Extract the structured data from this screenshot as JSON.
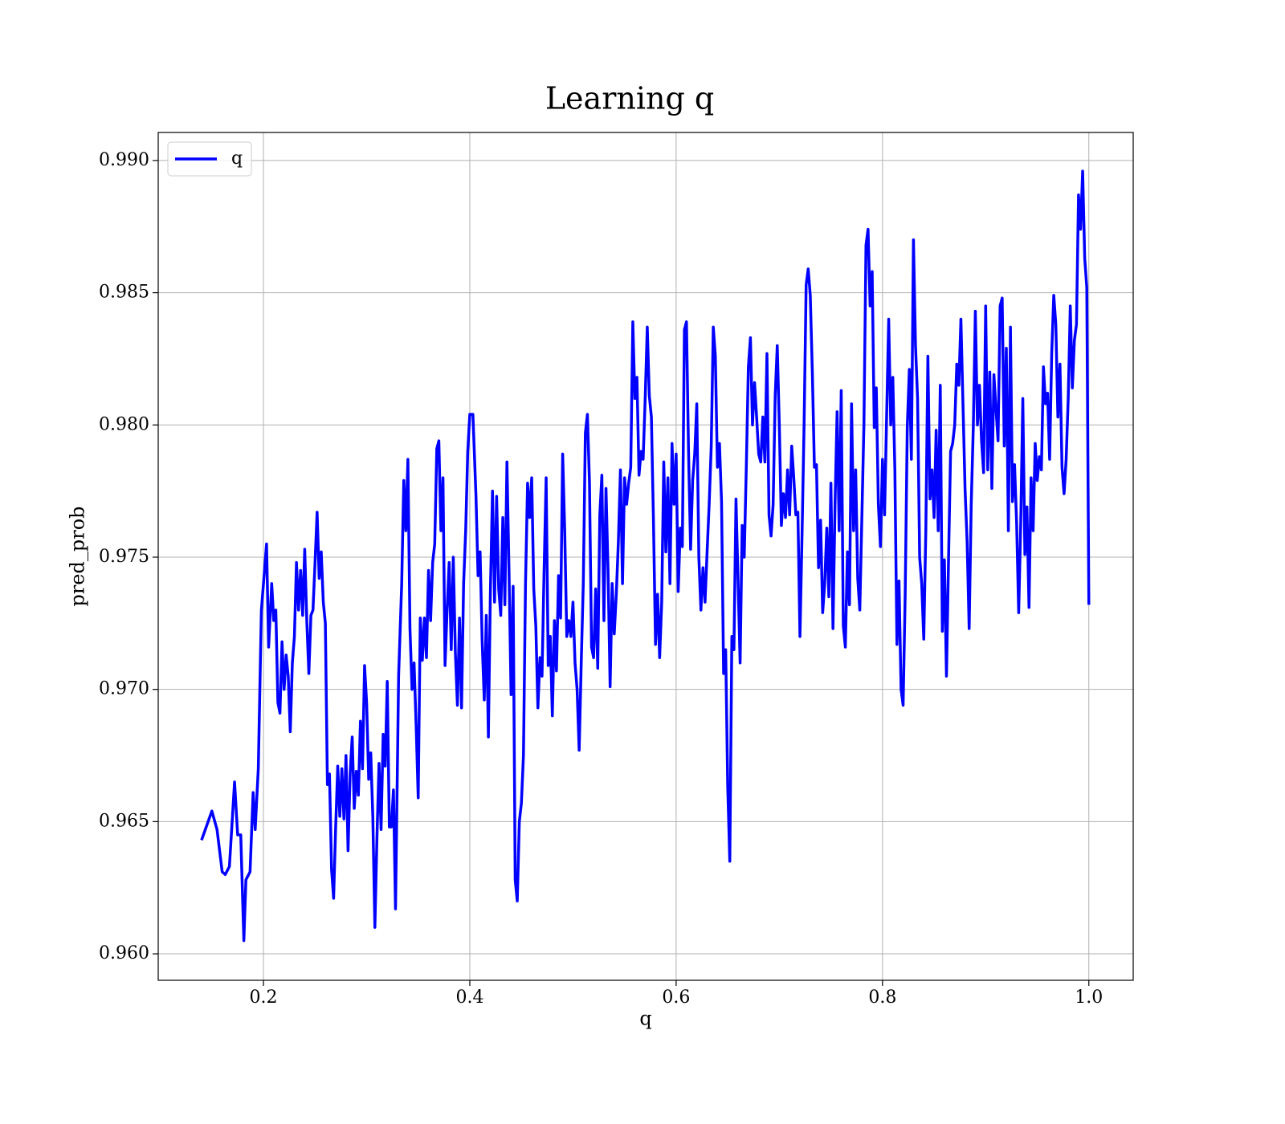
{
  "chart_data": {
    "type": "line",
    "title": "Learning q",
    "x_label": "q",
    "y_label": "pred_prob",
    "xlim": [
      0.098,
      1.043
    ],
    "ylim": [
      0.959,
      0.99106
    ],
    "xticks": [
      0.2,
      0.4,
      0.6,
      0.8,
      {
        "value": 1,
        "label": "1.0"
      }
    ],
    "yticks": [
      {
        "value": 0.96,
        "label": "0.960"
      },
      0.965,
      {
        "value": 0.97,
        "label": "0.970"
      },
      0.975,
      {
        "value": 0.98,
        "label": "0.980"
      },
      0.985,
      {
        "value": 0.99,
        "label": "0.990"
      }
    ],
    "grid": true,
    "legend": "upper left",
    "x": [
      0.14,
      0.15,
      0.155,
      0.16,
      0.163,
      0.167,
      0.172,
      0.175,
      0.178,
      0.181,
      0.183,
      0.187,
      0.19,
      0.192,
      0.195,
      0.198,
      0.203,
      0.205,
      0.208,
      0.21,
      0.212,
      0.214,
      0.216,
      0.218,
      0.22,
      0.222,
      0.224,
      0.226,
      0.228,
      0.23,
      0.232,
      0.234,
      0.236,
      0.238,
      0.24,
      0.242,
      0.244,
      0.246,
      0.248,
      0.25,
      0.252,
      0.254,
      0.256,
      0.258,
      0.26,
      0.262,
      0.264,
      0.266,
      0.268,
      0.27,
      0.272,
      0.274,
      0.276,
      0.278,
      0.28,
      0.282,
      0.284,
      0.286,
      0.288,
      0.29,
      0.292,
      0.294,
      0.296,
      0.298,
      0.3,
      0.302,
      0.304,
      0.306,
      0.308,
      0.31,
      0.312,
      0.314,
      0.316,
      0.318,
      0.32,
      0.322,
      0.324,
      0.326,
      0.328,
      0.331,
      0.334,
      0.336,
      0.338,
      0.34,
      0.342,
      0.344,
      0.346,
      0.348,
      0.35,
      0.352,
      0.354,
      0.356,
      0.358,
      0.36,
      0.362,
      0.364,
      0.366,
      0.368,
      0.37,
      0.372,
      0.374,
      0.376,
      0.378,
      0.38,
      0.382,
      0.384,
      0.386,
      0.388,
      0.39,
      0.392,
      0.394,
      0.396,
      0.398,
      0.4,
      0.403,
      0.406,
      0.408,
      0.41,
      0.412,
      0.414,
      0.416,
      0.418,
      0.42,
      0.422,
      0.424,
      0.426,
      0.428,
      0.43,
      0.432,
      0.434,
      0.436,
      0.438,
      0.44,
      0.442,
      0.444,
      0.446,
      0.448,
      0.45,
      0.452,
      0.454,
      0.456,
      0.458,
      0.46,
      0.462,
      0.464,
      0.466,
      0.468,
      0.47,
      0.472,
      0.474,
      0.476,
      0.478,
      0.48,
      0.482,
      0.484,
      0.486,
      0.488,
      0.49,
      0.492,
      0.494,
      0.496,
      0.498,
      0.5,
      0.502,
      0.504,
      0.506,
      0.508,
      0.51,
      0.512,
      0.514,
      0.516,
      0.518,
      0.52,
      0.522,
      0.524,
      0.526,
      0.528,
      0.53,
      0.532,
      0.534,
      0.536,
      0.538,
      0.54,
      0.542,
      0.544,
      0.546,
      0.548,
      0.55,
      0.552,
      0.554,
      0.556,
      0.558,
      0.56,
      0.562,
      0.564,
      0.566,
      0.568,
      0.57,
      0.572,
      0.574,
      0.576,
      0.578,
      0.58,
      0.582,
      0.584,
      0.586,
      0.588,
      0.59,
      0.592,
      0.594,
      0.596,
      0.598,
      0.6,
      0.602,
      0.604,
      0.606,
      0.608,
      0.61,
      0.612,
      0.614,
      0.616,
      0.618,
      0.62,
      0.622,
      0.624,
      0.626,
      0.628,
      0.63,
      0.632,
      0.634,
      0.636,
      0.638,
      0.64,
      0.642,
      0.644,
      0.646,
      0.648,
      0.65,
      0.652,
      0.654,
      0.656,
      0.658,
      0.66,
      0.662,
      0.664,
      0.666,
      0.668,
      0.67,
      0.672,
      0.674,
      0.676,
      0.678,
      0.68,
      0.682,
      0.684,
      0.686,
      0.688,
      0.69,
      0.692,
      0.694,
      0.696,
      0.698,
      0.7,
      0.702,
      0.704,
      0.706,
      0.708,
      0.71,
      0.712,
      0.714,
      0.716,
      0.718,
      0.72,
      0.722,
      0.724,
      0.726,
      0.728,
      0.73,
      0.732,
      0.734,
      0.736,
      0.738,
      0.74,
      0.742,
      0.744,
      0.746,
      0.748,
      0.75,
      0.752,
      0.754,
      0.756,
      0.758,
      0.76,
      0.762,
      0.764,
      0.766,
      0.768,
      0.77,
      0.772,
      0.774,
      0.776,
      0.778,
      0.78,
      0.782,
      0.784,
      0.786,
      0.788,
      0.79,
      0.792,
      0.794,
      0.796,
      0.798,
      0.8,
      0.802,
      0.804,
      0.806,
      0.808,
      0.81,
      0.812,
      0.814,
      0.816,
      0.818,
      0.82,
      0.822,
      0.824,
      0.826,
      0.828,
      0.83,
      0.832,
      0.834,
      0.836,
      0.838,
      0.84,
      0.842,
      0.844,
      0.846,
      0.848,
      0.85,
      0.852,
      0.854,
      0.856,
      0.858,
      0.86,
      0.862,
      0.864,
      0.866,
      0.868,
      0.87,
      0.872,
      0.874,
      0.876,
      0.878,
      0.88,
      0.882,
      0.884,
      0.886,
      0.888,
      0.89,
      0.892,
      0.894,
      0.896,
      0.898,
      0.9,
      0.902,
      0.904,
      0.906,
      0.908,
      0.91,
      0.912,
      0.914,
      0.916,
      0.918,
      0.92,
      0.922,
      0.924,
      0.926,
      0.928,
      0.93,
      0.932,
      0.934,
      0.936,
      0.938,
      0.94,
      0.942,
      0.944,
      0.946,
      0.948,
      0.95,
      0.952,
      0.954,
      0.956,
      0.958,
      0.96,
      0.962,
      0.964,
      0.966,
      0.968,
      0.97,
      0.972,
      0.974,
      0.976,
      0.978,
      0.98,
      0.982,
      0.984,
      0.986,
      0.988,
      0.99,
      0.992,
      0.994,
      0.996,
      0.998,
      1.0
    ],
    "series": [
      {
        "name": "q",
        "color": "#0000ff",
        "values": [
          0.9643,
          0.9654,
          0.9647,
          0.9631,
          0.963,
          0.9633,
          0.9665,
          0.9645,
          0.9645,
          0.9605,
          0.9628,
          0.9631,
          0.9661,
          0.9647,
          0.967,
          0.973,
          0.9755,
          0.9716,
          0.974,
          0.9726,
          0.973,
          0.9695,
          0.9691,
          0.9718,
          0.97,
          0.9713,
          0.9705,
          0.9684,
          0.971,
          0.972,
          0.9748,
          0.973,
          0.9745,
          0.9728,
          0.9753,
          0.9726,
          0.9706,
          0.9728,
          0.973,
          0.9748,
          0.9767,
          0.9742,
          0.9752,
          0.9733,
          0.9725,
          0.9664,
          0.9668,
          0.9632,
          0.9621,
          0.9648,
          0.9671,
          0.9652,
          0.967,
          0.9651,
          0.9675,
          0.9639,
          0.9668,
          0.9682,
          0.9655,
          0.9669,
          0.966,
          0.9688,
          0.967,
          0.9709,
          0.9695,
          0.9666,
          0.9676,
          0.9652,
          0.961,
          0.9644,
          0.9672,
          0.9647,
          0.9683,
          0.9671,
          0.9703,
          0.9648,
          0.9648,
          0.9662,
          0.9617,
          0.9705,
          0.974,
          0.9779,
          0.976,
          0.9787,
          0.9723,
          0.97,
          0.971,
          0.9686,
          0.9659,
          0.9727,
          0.9711,
          0.9727,
          0.9712,
          0.9745,
          0.9726,
          0.9748,
          0.9755,
          0.9791,
          0.9794,
          0.976,
          0.978,
          0.9709,
          0.973,
          0.9748,
          0.9715,
          0.975,
          0.9714,
          0.9694,
          0.9727,
          0.9693,
          0.974,
          0.976,
          0.979,
          0.9804,
          0.9804,
          0.9773,
          0.9743,
          0.9752,
          0.9718,
          0.9696,
          0.9728,
          0.9682,
          0.9738,
          0.9775,
          0.9733,
          0.9773,
          0.9738,
          0.9728,
          0.9765,
          0.9732,
          0.9786,
          0.9745,
          0.9698,
          0.9739,
          0.9628,
          0.962,
          0.965,
          0.9657,
          0.9675,
          0.974,
          0.9778,
          0.9765,
          0.978,
          0.9738,
          0.9724,
          0.9693,
          0.9712,
          0.9705,
          0.9745,
          0.978,
          0.9709,
          0.972,
          0.969,
          0.9726,
          0.9707,
          0.9743,
          0.9727,
          0.9789,
          0.976,
          0.972,
          0.9726,
          0.972,
          0.9733,
          0.971,
          0.97,
          0.9677,
          0.971,
          0.974,
          0.9797,
          0.9804,
          0.9778,
          0.9716,
          0.9712,
          0.9738,
          0.9708,
          0.9766,
          0.9781,
          0.9726,
          0.9776,
          0.9745,
          0.9701,
          0.974,
          0.9721,
          0.9736,
          0.9756,
          0.9783,
          0.974,
          0.978,
          0.977,
          0.9778,
          0.9784,
          0.9839,
          0.981,
          0.9818,
          0.9781,
          0.979,
          0.9787,
          0.981,
          0.9837,
          0.9811,
          0.9803,
          0.9764,
          0.9717,
          0.9736,
          0.9712,
          0.9733,
          0.9786,
          0.9752,
          0.978,
          0.974,
          0.9793,
          0.977,
          0.9789,
          0.9737,
          0.9761,
          0.9754,
          0.9836,
          0.9839,
          0.979,
          0.9753,
          0.9779,
          0.9789,
          0.9808,
          0.975,
          0.973,
          0.9746,
          0.9733,
          0.9752,
          0.977,
          0.9792,
          0.9837,
          0.9826,
          0.9784,
          0.9793,
          0.9771,
          0.9706,
          0.9715,
          0.9663,
          0.9635,
          0.972,
          0.9715,
          0.9772,
          0.9741,
          0.971,
          0.9762,
          0.975,
          0.9784,
          0.9822,
          0.9833,
          0.98,
          0.9816,
          0.9803,
          0.9789,
          0.9786,
          0.9803,
          0.9786,
          0.9827,
          0.9766,
          0.9758,
          0.977,
          0.9811,
          0.983,
          0.98,
          0.9762,
          0.9774,
          0.9765,
          0.9783,
          0.9766,
          0.9792,
          0.978,
          0.9766,
          0.9767,
          0.972,
          0.9758,
          0.98,
          0.9853,
          0.9859,
          0.9849,
          0.982,
          0.9784,
          0.9785,
          0.9746,
          0.9764,
          0.9729,
          0.974,
          0.9761,
          0.9735,
          0.9778,
          0.9723,
          0.977,
          0.9805,
          0.976,
          0.9813,
          0.9724,
          0.9716,
          0.9752,
          0.9732,
          0.9808,
          0.976,
          0.9783,
          0.9742,
          0.973,
          0.9765,
          0.98,
          0.9868,
          0.9874,
          0.9845,
          0.9858,
          0.9799,
          0.9814,
          0.977,
          0.9754,
          0.9787,
          0.9766,
          0.9803,
          0.984,
          0.98,
          0.9818,
          0.9783,
          0.9717,
          0.9741,
          0.97,
          0.9694,
          0.9736,
          0.9799,
          0.9821,
          0.9787,
          0.987,
          0.983,
          0.981,
          0.975,
          0.974,
          0.9719,
          0.976,
          0.9826,
          0.9772,
          0.9783,
          0.9765,
          0.9798,
          0.976,
          0.9815,
          0.9722,
          0.9749,
          0.9705,
          0.9749,
          0.979,
          0.9793,
          0.98,
          0.9823,
          0.9815,
          0.984,
          0.9808,
          0.9776,
          0.9756,
          0.9723,
          0.977,
          0.9799,
          0.9843,
          0.98,
          0.9815,
          0.9794,
          0.9782,
          0.9845,
          0.9783,
          0.982,
          0.9776,
          0.9819,
          0.9806,
          0.9794,
          0.9845,
          0.9848,
          0.9792,
          0.9829,
          0.976,
          0.9837,
          0.9771,
          0.9785,
          0.9763,
          0.9729,
          0.9763,
          0.981,
          0.9751,
          0.9769,
          0.9731,
          0.978,
          0.976,
          0.9793,
          0.9779,
          0.9788,
          0.9783,
          0.9822,
          0.9808,
          0.9812,
          0.9787,
          0.9827,
          0.9849,
          0.9838,
          0.9803,
          0.9823,
          0.9784,
          0.9774,
          0.9787,
          0.981,
          0.9845,
          0.9814,
          0.9832,
          0.9838,
          0.9887,
          0.9874,
          0.9896,
          0.9863,
          0.9852,
          0.9732
        ]
      }
    ]
  }
}
